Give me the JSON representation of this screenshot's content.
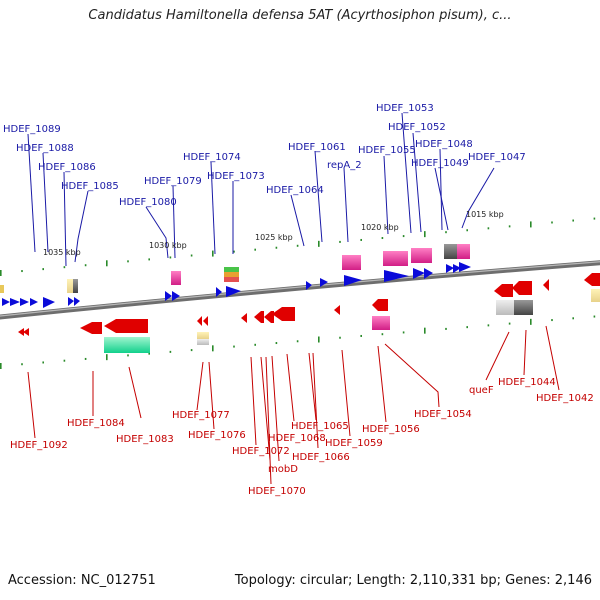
{
  "title": "Candidatus Hamiltonella defensa 5AT (Acyrthosiphon pisum), c...",
  "footer": {
    "accession": "Accession: NC_012751",
    "summary": "Topology: circular; Length: 2,110,331 bp; Genes: 2,146"
  },
  "colors": {
    "forward_gene": "#0b0bd9",
    "reverse_gene": "#e00000",
    "top_label": "#1a1aa6",
    "bottom_label": "#c40000",
    "backbone": "#808080",
    "tick": "#2a8a2a"
  },
  "scale_labels": [
    "1035 kbp",
    "1030 kbp",
    "1025 kbp",
    "1020 kbp",
    "1015 kbp"
  ],
  "top_labels": [
    "HDEF_1089",
    "HDEF_1088",
    "HDEF_1086",
    "HDEF_1085",
    "HDEF_1080",
    "HDEF_1079",
    "HDEF_1074",
    "HDEF_1073",
    "HDEF_1064",
    "HDEF_1061",
    "repA_2",
    "HDEF_1055",
    "HDEF_1053",
    "HDEF_1052",
    "HDEF_1048",
    "HDEF_1049",
    "HDEF_1047"
  ],
  "bottom_labels": [
    "HDEF_1092",
    "HDEF_1084",
    "HDEF_1083",
    "HDEF_1077",
    "HDEF_1076",
    "HDEF_1072",
    "HDEF_1068",
    "mobD",
    "HDEF_1070",
    "HDEF_1065",
    "HDEF_1066",
    "HDEF_1059",
    "HDEF_1056",
    "HDEF_1054",
    "queF",
    "HDEF_1044",
    "HDEF_1042"
  ]
}
